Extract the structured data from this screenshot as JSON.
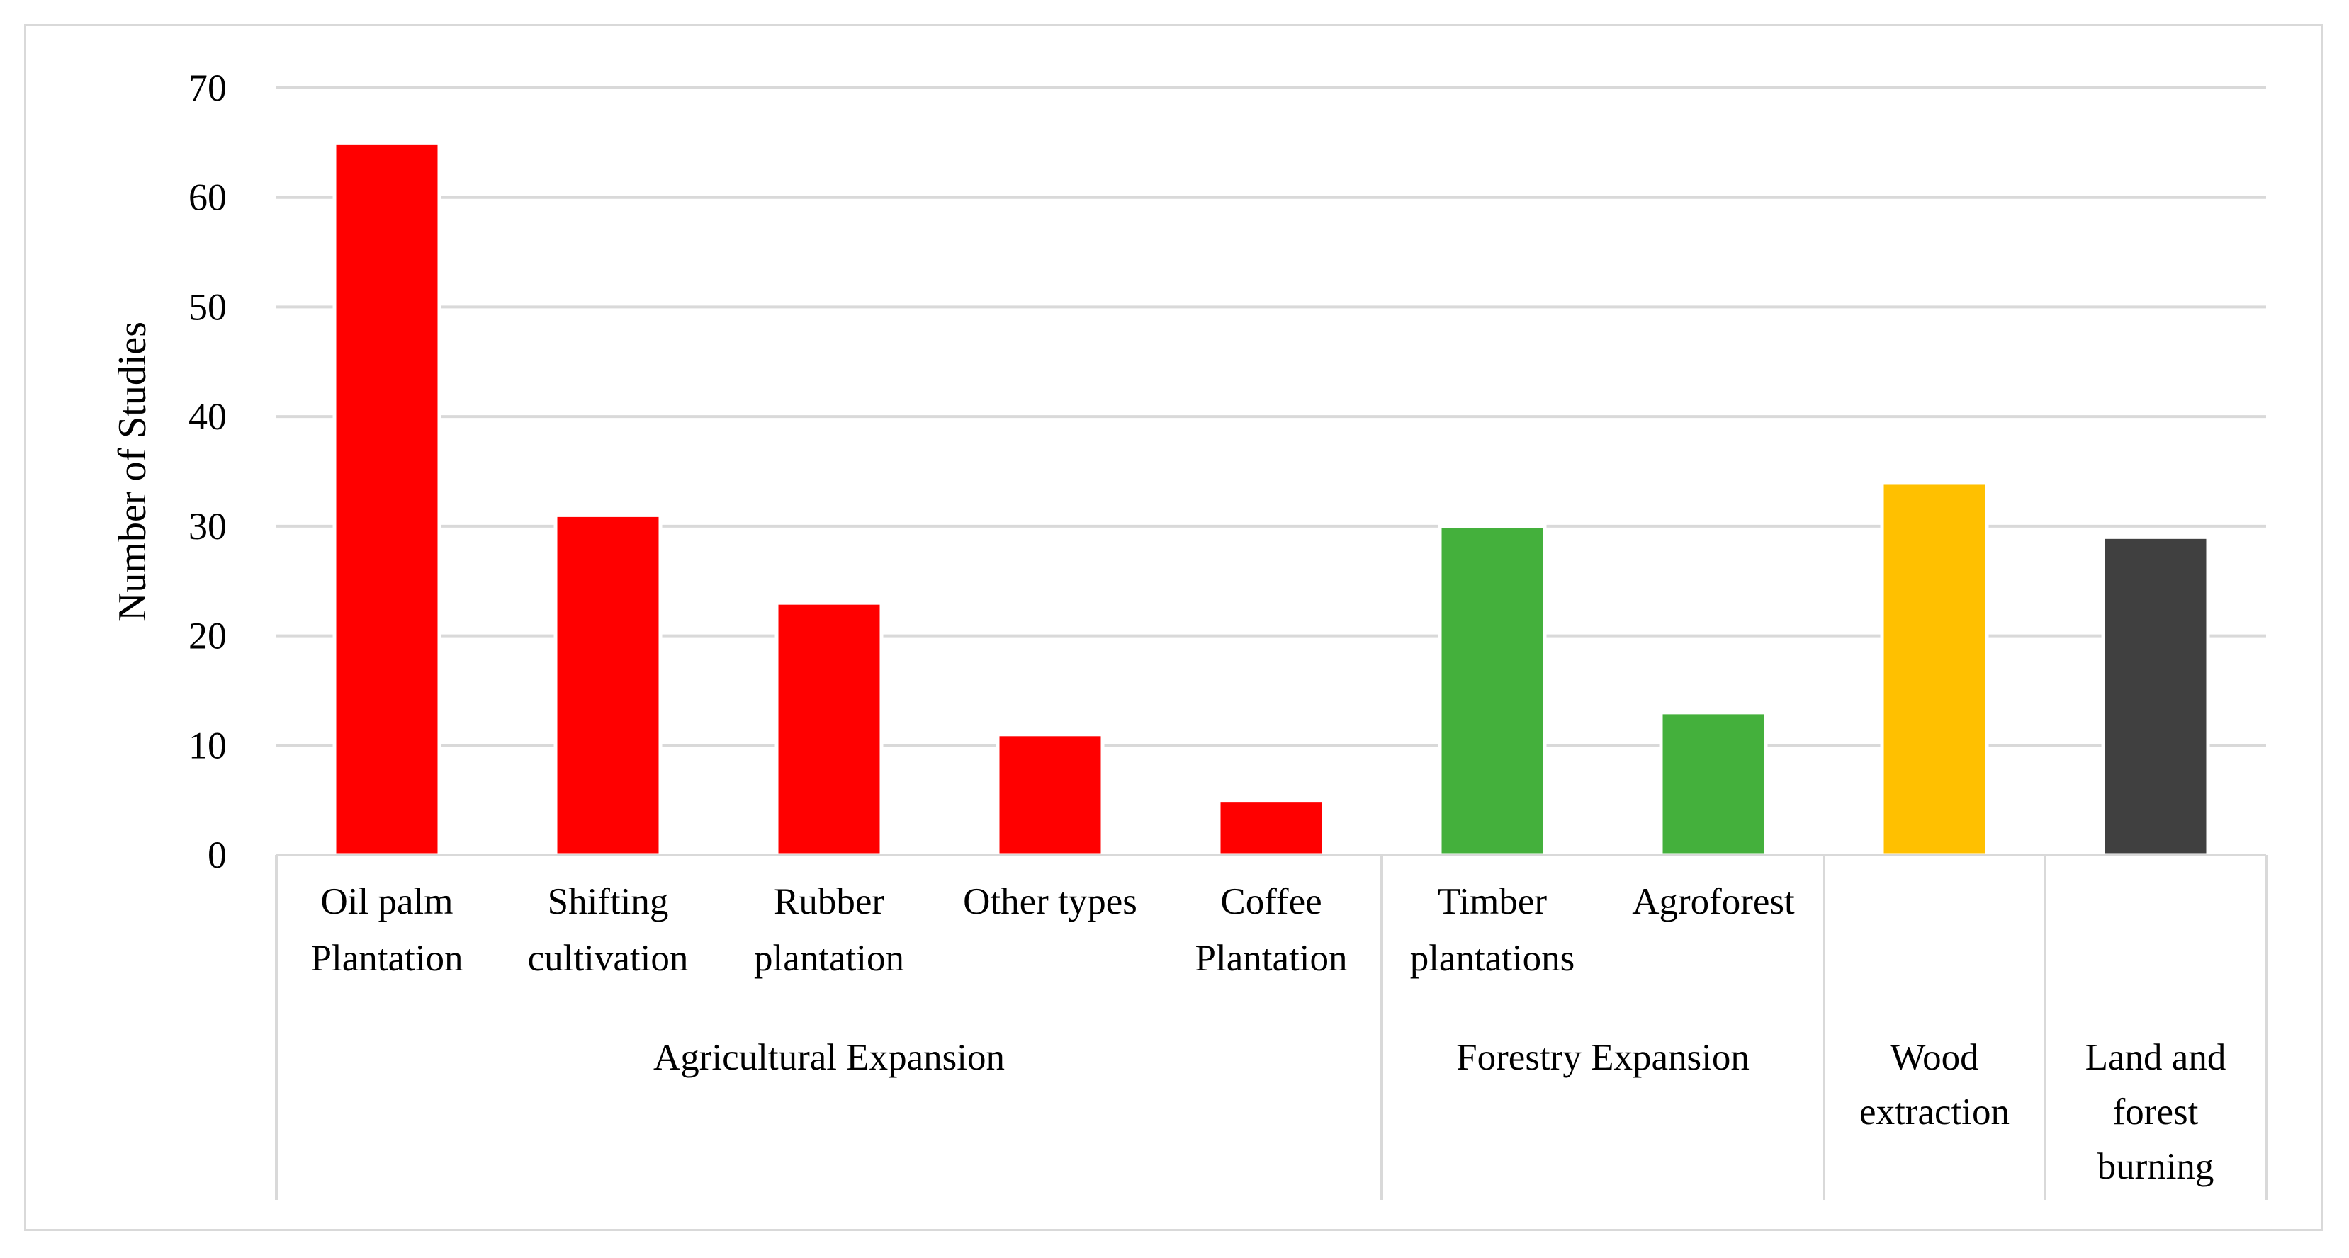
{
  "chart_data": {
    "type": "bar",
    "ylabel": "Number of Studies",
    "ylim": [
      0,
      70
    ],
    "yticks": [
      "0",
      "10",
      "20",
      "30",
      "40",
      "50",
      "60",
      "70"
    ],
    "grid": true,
    "categories": [
      [
        "Oil palm",
        "Plantation"
      ],
      [
        "Shifting",
        "cultivation"
      ],
      [
        "Rubber",
        "plantation"
      ],
      [
        "Other types"
      ],
      [
        "Coffee",
        "Plantation"
      ],
      [
        "Timber",
        "plantations"
      ],
      [
        "Agroforest"
      ],
      [],
      []
    ],
    "values": [
      65,
      31,
      23,
      11,
      5,
      30,
      13,
      34,
      29
    ],
    "colors": [
      "#ff0000",
      "#ff0000",
      "#ff0000",
      "#ff0000",
      "#ff0000",
      "#44b03c",
      "#44b03c",
      "#ffc000",
      "#404040"
    ],
    "groups": [
      {
        "label": [
          "Agricultural Expansion"
        ],
        "start": 0,
        "end": 4
      },
      {
        "label": [
          "Forestry Expansion"
        ],
        "start": 5,
        "end": 6
      },
      {
        "label": [
          "Wood",
          "extraction"
        ],
        "start": 7,
        "end": 7
      },
      {
        "label": [
          "Land and",
          "forest",
          "burning"
        ],
        "start": 8,
        "end": 8
      }
    ]
  }
}
